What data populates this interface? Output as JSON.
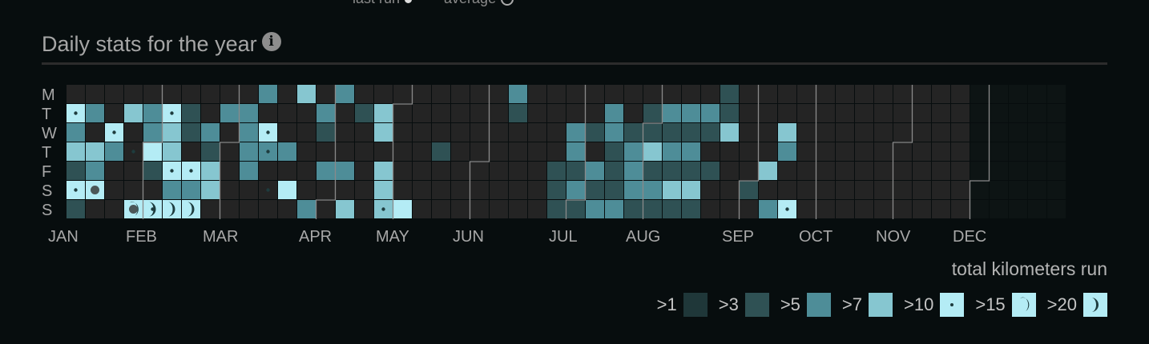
{
  "top_legend": {
    "last_run": "last run",
    "average": "average"
  },
  "section": {
    "title": "Daily stats for the year",
    "info_icon": "info-icon"
  },
  "caption": "total kilometers run",
  "colors": {
    "empty": "#242424",
    "empty_future": "#0d1414",
    "gt1": "#1f3739",
    "gt3": "#2f5154",
    "gt5": "#4e8d98",
    "gt7": "#86c6d0",
    "gt10": "#b4ecf5",
    "marker": "#1e3c3e",
    "month_line": "#8a8a8a"
  },
  "legend": [
    {
      "label": ">1",
      "level": 1
    },
    {
      "label": ">3",
      "level": 2
    },
    {
      "label": ">5",
      "level": 3
    },
    {
      "label": ">7",
      "level": 4
    },
    {
      "label": ">10",
      "level": 5
    },
    {
      "label": ">15",
      "level": 6
    },
    {
      "label": ">20",
      "level": 7
    }
  ],
  "chart_data": {
    "type": "heatmap",
    "title": "Daily stats for the year",
    "rows": [
      "M",
      "T",
      "W",
      "T",
      "F",
      "S",
      "S"
    ],
    "months": [
      "JAN",
      "FEB",
      "MAR",
      "APR",
      "MAY",
      "JUN",
      "JUL",
      "AUG",
      "SEP",
      "OCT",
      "NOV",
      "DEC"
    ],
    "weeks": 52,
    "past_weeks": 47,
    "level_scale": {
      "1": ">1",
      "2": ">3",
      "3": ">5",
      "4": ">7",
      "5": ">10",
      "6": ">15",
      "7": ">20"
    },
    "levels": [
      [
        0,
        0,
        0,
        0,
        0,
        0,
        0,
        0,
        0,
        0,
        3,
        0,
        4,
        0,
        3,
        0,
        0,
        0,
        0,
        0,
        0,
        0,
        0,
        3,
        0,
        0,
        0,
        0,
        0,
        0,
        0,
        0,
        0,
        0,
        2,
        0,
        0,
        0,
        0,
        0,
        0,
        0,
        0,
        0,
        0,
        0,
        0
      ],
      [
        5,
        3,
        0,
        4,
        3,
        5,
        2,
        0,
        3,
        3,
        0,
        0,
        0,
        3,
        0,
        2,
        4,
        0,
        0,
        0,
        0,
        0,
        0,
        2,
        0,
        0,
        0,
        0,
        3,
        0,
        2,
        3,
        3,
        3,
        2,
        0,
        0,
        0,
        0,
        0,
        0,
        0,
        0,
        0,
        0,
        0,
        0
      ],
      [
        3,
        0,
        5,
        0,
        3,
        4,
        2,
        3,
        0,
        3,
        5,
        0,
        0,
        2,
        0,
        0,
        4,
        0,
        0,
        0,
        0,
        0,
        0,
        0,
        0,
        0,
        3,
        2,
        3,
        2,
        2,
        2,
        2,
        2,
        4,
        0,
        0,
        4,
        0,
        0,
        0,
        0,
        0,
        0,
        0,
        0,
        0
      ],
      [
        4,
        4,
        3,
        0,
        5,
        4,
        0,
        2,
        0,
        3,
        3,
        3,
        0,
        0,
        0,
        0,
        0,
        0,
        0,
        2,
        0,
        0,
        0,
        0,
        0,
        0,
        3,
        0,
        2,
        3,
        4,
        3,
        3,
        0,
        0,
        0,
        0,
        3,
        0,
        0,
        0,
        0,
        0,
        0,
        0,
        0,
        0
      ],
      [
        2,
        3,
        0,
        0,
        2,
        5,
        5,
        4,
        0,
        3,
        0,
        0,
        0,
        3,
        3,
        0,
        4,
        0,
        0,
        0,
        0,
        0,
        0,
        0,
        0,
        2,
        2,
        3,
        2,
        3,
        2,
        2,
        2,
        2,
        0,
        0,
        4,
        0,
        0,
        0,
        0,
        0,
        0,
        0,
        0,
        0,
        0
      ],
      [
        5,
        5,
        0,
        0,
        0,
        3,
        3,
        4,
        0,
        0,
        0,
        5,
        0,
        0,
        0,
        0,
        4,
        0,
        0,
        0,
        0,
        0,
        0,
        0,
        0,
        2,
        3,
        2,
        2,
        3,
        3,
        4,
        4,
        0,
        0,
        2,
        0,
        0,
        0,
        0,
        0,
        0,
        0,
        0,
        0,
        0,
        0
      ],
      [
        2,
        0,
        0,
        6,
        7,
        7,
        7,
        0,
        0,
        0,
        0,
        0,
        3,
        0,
        4,
        0,
        4,
        5,
        0,
        0,
        0,
        0,
        0,
        0,
        0,
        2,
        2,
        3,
        3,
        2,
        2,
        2,
        2,
        0,
        0,
        0,
        3,
        5,
        0,
        0,
        0,
        0,
        0,
        0,
        0,
        0,
        0
      ]
    ],
    "dot_markers": [
      {
        "week": 0,
        "day": 1
      },
      {
        "week": 5,
        "day": 1
      },
      {
        "week": 2,
        "day": 2
      },
      {
        "week": 10,
        "day": 2
      },
      {
        "week": 10,
        "day": 3
      },
      {
        "week": 3,
        "day": 3
      },
      {
        "week": 5,
        "day": 4
      },
      {
        "week": 6,
        "day": 4
      },
      {
        "week": 0,
        "day": 5
      },
      {
        "week": 10,
        "day": 5
      },
      {
        "week": 16,
        "day": 6
      },
      {
        "week": 4,
        "day": 6
      },
      {
        "week": 37,
        "day": 6
      }
    ],
    "large_dots": [
      {
        "week": 1,
        "day": 5
      },
      {
        "week": 3,
        "day": 6
      }
    ]
  }
}
